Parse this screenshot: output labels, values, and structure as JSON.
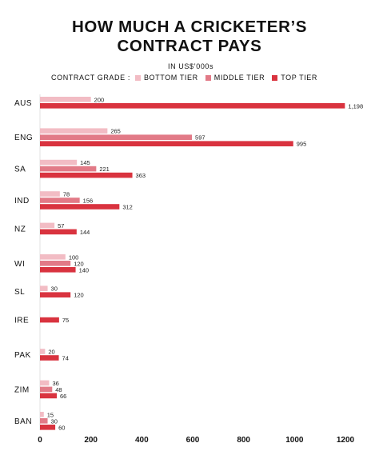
{
  "chart_data": {
    "type": "bar",
    "orientation": "horizontal",
    "title_line1": "HOW MUCH A CRICKETER’S",
    "title_line2": "CONTRACT PAYS",
    "subtitle": "IN US$’000s",
    "legend_title": "CONTRACT GRADE :",
    "legend_placement": "top",
    "grid": false,
    "xlim": [
      0,
      1200
    ],
    "x_ticks": [
      "0",
      "200",
      "400",
      "600",
      "800",
      "1000",
      "1200"
    ],
    "x_tick_values": [
      0,
      200,
      400,
      600,
      800,
      1000,
      1200
    ],
    "categories": [
      "AUS",
      "ENG",
      "SA",
      "IND",
      "NZ",
      "WI",
      "SL",
      "IRE",
      "PAK",
      "ZIM",
      "BAN"
    ],
    "series": [
      {
        "name": "BOTTOM TIER",
        "color": "#f2bcc4",
        "values": [
          200,
          265,
          145,
          78,
          57,
          100,
          30,
          null,
          20,
          36,
          15
        ]
      },
      {
        "name": "MIDDLE TIER",
        "color": "#e27a87",
        "values": [
          null,
          597,
          221,
          156,
          null,
          120,
          null,
          null,
          null,
          48,
          30
        ]
      },
      {
        "name": "TOP TIER",
        "color": "#d9333f",
        "values": [
          1198,
          995,
          363,
          312,
          144,
          140,
          120,
          75,
          74,
          66,
          60
        ]
      }
    ],
    "data_labels": [
      [
        "200",
        null,
        "1,198"
      ],
      [
        "265",
        "597",
        "995"
      ],
      [
        "145",
        "221",
        "363"
      ],
      [
        "78",
        "156",
        "312"
      ],
      [
        "57",
        null,
        "144"
      ],
      [
        "100",
        "120",
        "140"
      ],
      [
        "30",
        null,
        "120"
      ],
      [
        null,
        null,
        "75"
      ],
      [
        "20",
        null,
        "74"
      ],
      [
        "36",
        "48",
        "66"
      ],
      [
        "15",
        "30",
        "60"
      ]
    ]
  }
}
